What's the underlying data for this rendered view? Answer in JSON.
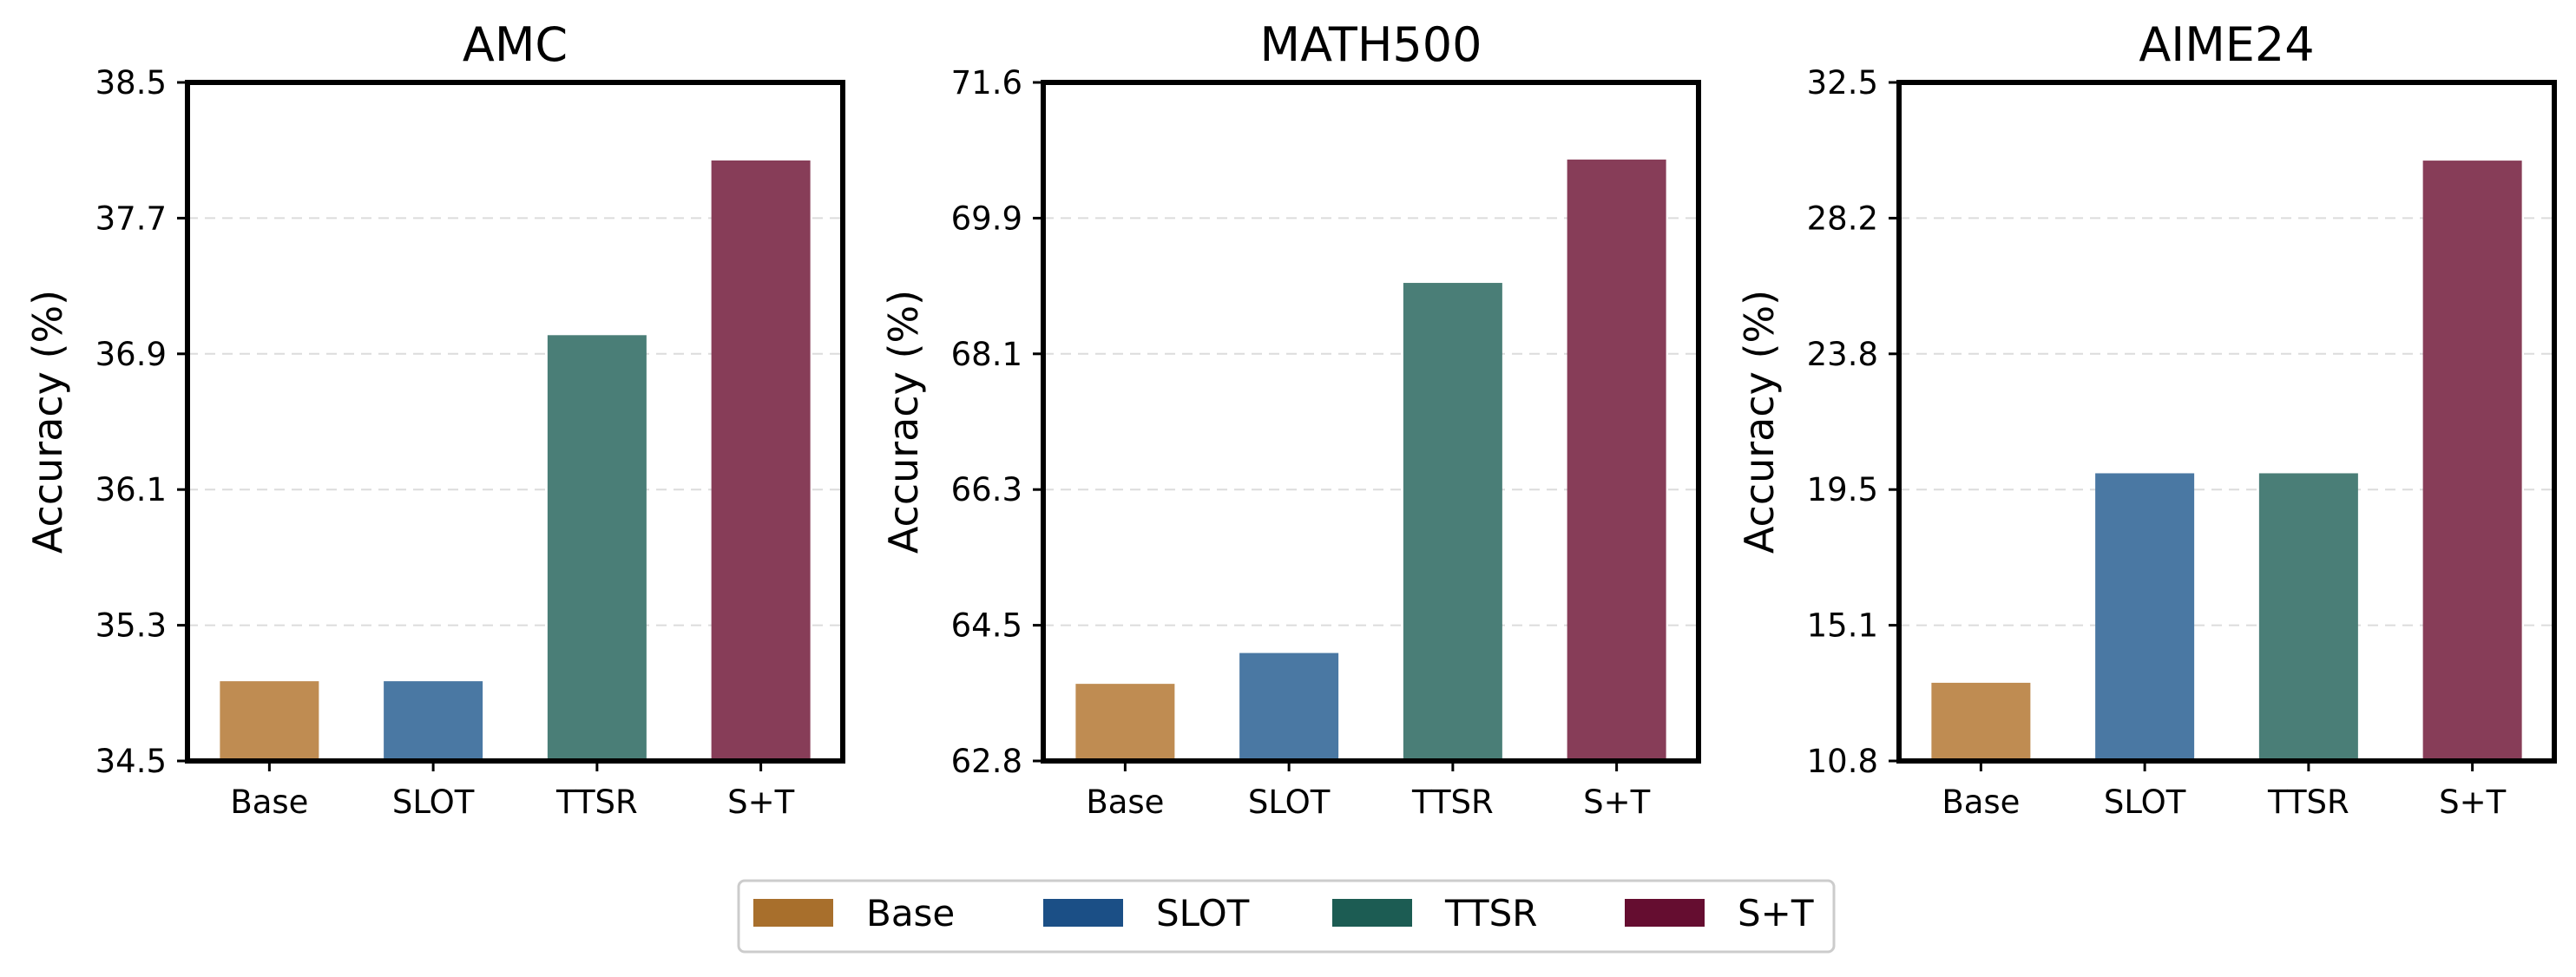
{
  "chart_data": [
    {
      "type": "bar",
      "title": "AMC",
      "ylabel": "Accuracy (%)",
      "categories": [
        "Base",
        "SLOT",
        "TTSR",
        "S+T"
      ],
      "values": [
        34.97,
        34.97,
        37.01,
        38.04
      ],
      "ylim": [
        34.5,
        38.5
      ],
      "yticks": [
        "34.5",
        "35.3",
        "36.1",
        "36.9",
        "37.7",
        "38.5"
      ],
      "grid": "y-dashed"
    },
    {
      "type": "bar",
      "title": "MATH500",
      "ylabel": "Accuracy (%)",
      "categories": [
        "Base",
        "SLOT",
        "TTSR",
        "S+T"
      ],
      "values": [
        63.8,
        64.2,
        69.0,
        70.6
      ],
      "ylim": [
        62.8,
        71.6
      ],
      "yticks": [
        "62.8",
        "64.5",
        "66.3",
        "68.1",
        "69.9",
        "71.6"
      ],
      "grid": "y-dashed"
    },
    {
      "type": "bar",
      "title": "AIME24",
      "ylabel": "Accuracy (%)",
      "categories": [
        "Base",
        "SLOT",
        "TTSR",
        "S+T"
      ],
      "values": [
        13.3,
        20.0,
        20.0,
        30.0
      ],
      "ylim": [
        10.8,
        32.5
      ],
      "yticks": [
        "10.8",
        "15.1",
        "19.5",
        "23.8",
        "28.2",
        "32.5"
      ],
      "grid": "y-dashed"
    }
  ],
  "legend": {
    "position": "bottom-center",
    "items": [
      {
        "label": "Base",
        "color": "#a86f2c"
      },
      {
        "label": "SLOT",
        "color": "#1b4f86"
      },
      {
        "label": "TTSR",
        "color": "#1c5c53"
      },
      {
        "label": "S+T",
        "color": "#650d30"
      }
    ]
  },
  "bar_colors": [
    "#bf8c52",
    "#4a78a3",
    "#4a7e77",
    "#873d58"
  ]
}
